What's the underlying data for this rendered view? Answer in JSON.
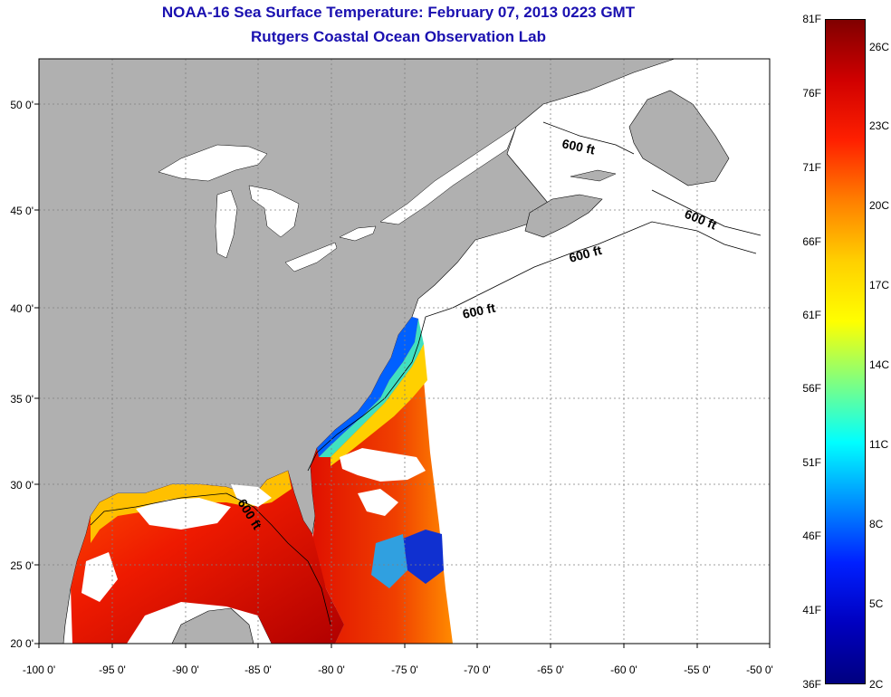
{
  "title": "NOAA-16 Sea Surface Temperature:  February 07, 2013 0223 GMT",
  "subtitle": "Rutgers Coastal Ocean Observation Lab",
  "axes": {
    "lon_labels": [
      "-100 0'",
      "-95 0'",
      "-90 0'",
      "-85 0'",
      "-80 0'",
      "-75 0'",
      "-70 0'",
      "-65 0'",
      "-60 0'",
      "-55 0'",
      "-50 0'"
    ],
    "lat_labels": [
      "50 0'",
      "45 0'",
      "40 0'",
      "35 0'",
      "30 0'",
      "25 0'",
      "20 0'"
    ],
    "lon_range": [
      -100,
      -50
    ],
    "lat_range": [
      20,
      52.5
    ]
  },
  "contour_label": "600 ft",
  "colorbar": {
    "fahrenheit": [
      "81F",
      "76F",
      "71F",
      "66F",
      "61F",
      "56F",
      "51F",
      "46F",
      "41F",
      "36F"
    ],
    "celsius": [
      "26C",
      "23C",
      "20C",
      "17C",
      "14C",
      "11C",
      "8C",
      "5C",
      "2C"
    ],
    "colors": [
      "#800000",
      "#d00000",
      "#ff2000",
      "#ff7f00",
      "#ffd000",
      "#ffff00",
      "#80ff80",
      "#00ffff",
      "#0090ff",
      "#0020ff",
      "#0000c0",
      "#000080"
    ]
  },
  "colors": {
    "land": "#b0b0b0",
    "water_missing": "#ffffff",
    "title": "#1a10b0",
    "grid": "#808080"
  }
}
